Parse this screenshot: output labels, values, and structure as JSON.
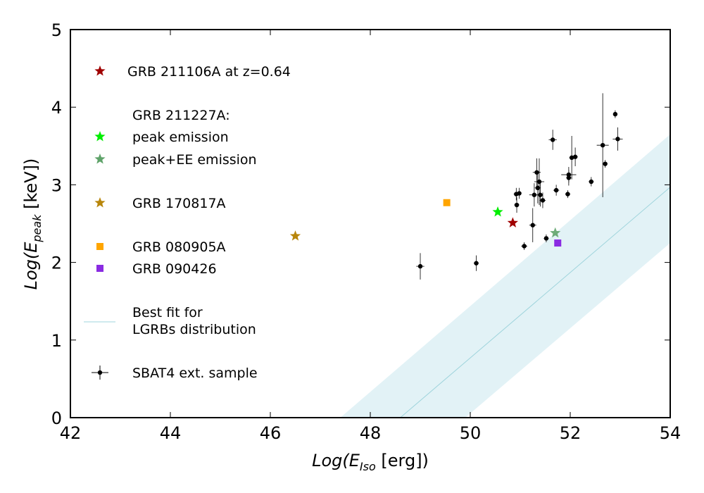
{
  "chart_data": {
    "type": "scatter",
    "xlabel_main": "Log(E",
    "xlabel_sub": "Iso",
    "xlabel_tail": " [erg])",
    "ylabel_main": "Log(E",
    "ylabel_sub": "peak",
    "ylabel_tail": " [keV])",
    "xlim": [
      42,
      54
    ],
    "ylim": [
      0,
      5
    ],
    "xticks": [
      42,
      44,
      46,
      48,
      50,
      52,
      54
    ],
    "yticks": [
      0,
      1,
      2,
      3,
      4,
      5
    ],
    "legend": {
      "grb211106a": "GRB 211106A at z=0.64",
      "grb211227a_title": "GRB 211227A:",
      "peak": "peak emission",
      "peak_ee": "peak+EE emission",
      "grb170817a": "GRB 170817A",
      "grb080905a": "GRB 080905A",
      "grb090426": "GRB 090426",
      "bestfit_line1": "Best fit for",
      "bestfit_line2": "LGRBs distribution",
      "sbat4": "SBAT4 ext. sample"
    },
    "colors": {
      "grb211106a": "#a00000",
      "peak": "#00ee00",
      "peak_ee": "#5fa36a",
      "grb170817a": "#b8860b",
      "grb080905a": "#ffa500",
      "grb090426": "#8a2be2",
      "band": "#cfeaf0",
      "bestfit": "#9fd4dc"
    },
    "bestfit": {
      "center": [
        [
          48.6,
          0
        ],
        [
          54,
          2.97
        ]
      ],
      "upper": [
        [
          47.4,
          0
        ],
        [
          54,
          3.65
        ]
      ],
      "lower": [
        [
          49.9,
          0
        ],
        [
          54,
          2.25
        ]
      ]
    },
    "special_points": [
      {
        "name": "GRB 211106A at z=0.64",
        "x": 50.85,
        "y": 2.51,
        "marker": "star",
        "color_key": "grb211106a"
      },
      {
        "name": "peak emission",
        "x": 50.55,
        "y": 2.65,
        "marker": "star",
        "color_key": "peak"
      },
      {
        "name": "peak+EE emission",
        "x": 51.7,
        "y": 2.38,
        "marker": "star",
        "color_key": "peak_ee"
      },
      {
        "name": "GRB 170817A",
        "x": 46.5,
        "y": 2.34,
        "marker": "star",
        "color_key": "grb170817a"
      },
      {
        "name": "GRB 080905A",
        "x": 49.53,
        "y": 2.77,
        "marker": "square",
        "color_key": "grb080905a"
      },
      {
        "name": "GRB 090426",
        "x": 51.75,
        "y": 2.25,
        "marker": "square",
        "color_key": "grb090426"
      }
    ],
    "sbat4_points": [
      {
        "x": 49.0,
        "y": 1.95,
        "xerr": 0.08,
        "yerr": 0.17
      },
      {
        "x": 50.12,
        "y": 1.99,
        "xerr": 0.05,
        "yerr": 0.1
      },
      {
        "x": 50.93,
        "y": 2.74,
        "xerr": 0.05,
        "yerr": 0.1
      },
      {
        "x": 50.92,
        "y": 2.88,
        "xerr": 0.05,
        "yerr": 0.08
      },
      {
        "x": 50.98,
        "y": 2.89,
        "xerr": 0.04,
        "yerr": 0.07
      },
      {
        "x": 51.08,
        "y": 2.21,
        "xerr": 0.06,
        "yerr": 0.05
      },
      {
        "x": 51.25,
        "y": 2.48,
        "xerr": 0.07,
        "yerr": 0.22
      },
      {
        "x": 51.28,
        "y": 2.87,
        "xerr": 0.1,
        "yerr": 0.15
      },
      {
        "x": 51.33,
        "y": 3.16,
        "xerr": 0.08,
        "yerr": 0.18
      },
      {
        "x": 51.35,
        "y": 2.96,
        "xerr": 0.06,
        "yerr": 0.2
      },
      {
        "x": 51.38,
        "y": 3.04,
        "xerr": 0.1,
        "yerr": 0.3
      },
      {
        "x": 51.4,
        "y": 2.87,
        "xerr": 0.05,
        "yerr": 0.15
      },
      {
        "x": 51.45,
        "y": 2.8,
        "xerr": 0.06,
        "yerr": 0.1
      },
      {
        "x": 51.52,
        "y": 2.31,
        "xerr": 0.05,
        "yerr": 0.05
      },
      {
        "x": 51.65,
        "y": 3.58,
        "xerr": 0.08,
        "yerr": 0.13
      },
      {
        "x": 51.72,
        "y": 2.93,
        "xerr": 0.06,
        "yerr": 0.07
      },
      {
        "x": 51.95,
        "y": 2.88,
        "xerr": 0.05,
        "yerr": 0.05
      },
      {
        "x": 51.97,
        "y": 3.13,
        "xerr": 0.15,
        "yerr": 0.1
      },
      {
        "x": 51.97,
        "y": 3.09,
        "xerr": 0.05,
        "yerr": 0.1
      },
      {
        "x": 52.03,
        "y": 3.35,
        "xerr": 0.05,
        "yerr": 0.28
      },
      {
        "x": 52.1,
        "y": 3.36,
        "xerr": 0.05,
        "yerr": 0.12
      },
      {
        "x": 52.42,
        "y": 3.04,
        "xerr": 0.05,
        "yerr": 0.06
      },
      {
        "x": 52.65,
        "y": 3.51,
        "xerr": 0.12,
        "yerr": 0.67
      },
      {
        "x": 52.7,
        "y": 3.27,
        "xerr": 0.04,
        "yerr": 0.05
      },
      {
        "x": 52.9,
        "y": 3.91,
        "xerr": 0.04,
        "yerr": 0.05
      },
      {
        "x": 52.95,
        "y": 3.59,
        "xerr": 0.1,
        "yerr": 0.15
      }
    ]
  }
}
